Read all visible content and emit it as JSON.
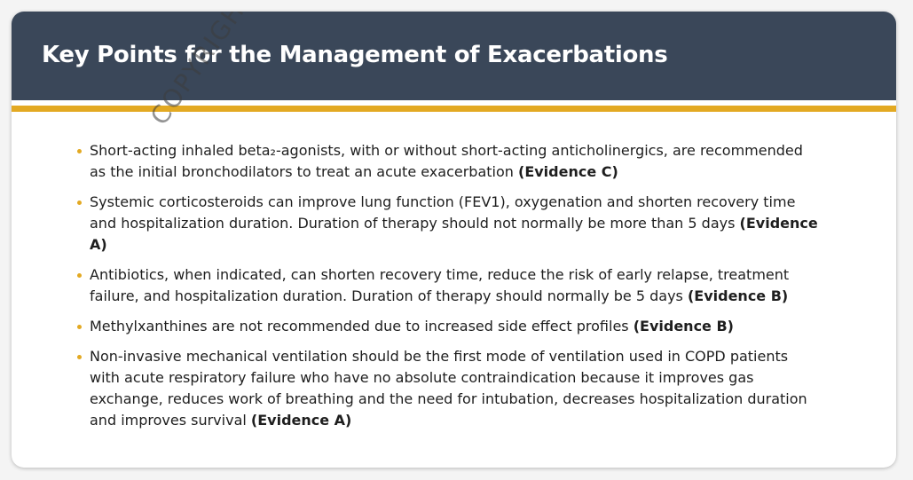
{
  "slide": {
    "title": "Key Points for the Management of Exacerbations",
    "watermark": "COPYRIGHT MATERIAL",
    "accent_color": "#e3a922",
    "header_color": "#3a4759",
    "bullets": [
      {
        "text": "Short-acting inhaled beta₂-agonists, with or without short-acting anticholinergics, are recommended as the initial bronchodilators to treat an acute exacerbation ",
        "evidence": "(Evidence C)"
      },
      {
        "text": "Systemic corticosteroids can improve lung function (FEV1), oxygenation and shorten recovery time and hospitalization duration. Duration of therapy should not normally be more than 5 days ",
        "evidence": "(Evidence A)"
      },
      {
        "text": "Antibiotics, when indicated, can shorten recovery time, reduce the risk of early relapse, treatment failure, and hospitalization duration. Duration of therapy should normally be 5 days ",
        "evidence": "(Evidence B)"
      },
      {
        "text": "Methylxanthines are not recommended due to increased side effect profiles ",
        "evidence": "(Evidence B)"
      },
      {
        "text": "Non-invasive mechanical ventilation should be the first mode of ventilation used in COPD patients with acute respiratory failure who have no absolute contraindication because it improves gas exchange, reduces work of breathing and the need for intubation, decreases hospitalization duration and improves survival ",
        "evidence": "(Evidence A)"
      }
    ]
  }
}
